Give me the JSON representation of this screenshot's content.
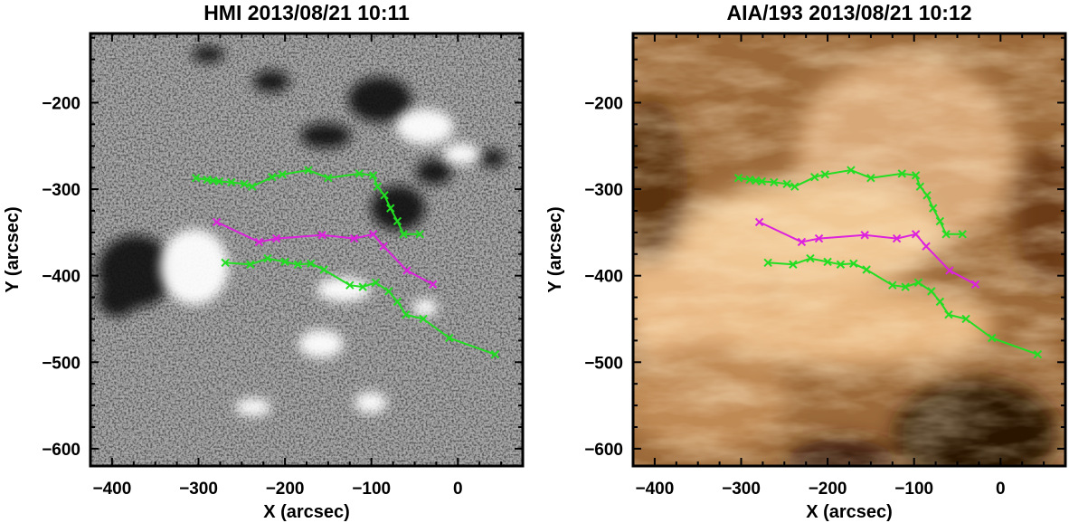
{
  "panels": [
    {
      "id": "hmi",
      "title": "HMI 2013/08/21 10:11",
      "xlabel": "X (arcsec)",
      "ylabel": "Y (arcsec)",
      "image_kind": "magnetogram (grayscale)"
    },
    {
      "id": "aia",
      "title": "AIA/193 2013/08/21 10:12",
      "xlabel": "X (arcsec)",
      "ylabel": "Y (arcsec)",
      "image_kind": "EUV 193 (copper)"
    }
  ],
  "axes": {
    "xlim": [
      -425,
      75
    ],
    "ylim": [
      -620,
      -120
    ],
    "xticks": [
      -400,
      -300,
      -200,
      -100,
      0
    ],
    "yticks": [
      -200,
      -300,
      -400,
      -500,
      -600
    ],
    "xtick_labels": [
      "−400",
      "−300",
      "−200",
      "−100",
      "0"
    ],
    "ytick_labels": [
      "−200",
      "−300",
      "−400",
      "−500",
      "−600"
    ]
  },
  "colors": {
    "green": "#22dd22",
    "magenta": "#dd22dd",
    "hmi_gray": "#888888",
    "aia_copper": "#b07030"
  },
  "chart_data": {
    "type": "line",
    "marker": "x",
    "series": [
      {
        "color": "green",
        "x": [
          -303,
          -290,
          -283,
          -276,
          -262,
          -247,
          -238,
          -215,
          -203,
          -173,
          -150,
          -114,
          -98,
          -93,
          -85,
          -78,
          -70,
          -63,
          -44
        ],
        "y": [
          -287,
          -289,
          -290,
          -291,
          -292,
          -294,
          -297,
          -286,
          -283,
          -278,
          -287,
          -282,
          -284,
          -297,
          -307,
          -322,
          -337,
          -352,
          -352
        ]
      },
      {
        "color": "magenta",
        "x": [
          -279,
          -230,
          -210,
          -157,
          -120,
          -98,
          -86,
          -59,
          -29
        ],
        "y": [
          -338,
          -361,
          -357,
          -353,
          -357,
          -352,
          -366,
          -394,
          -410
        ]
      },
      {
        "color": "green",
        "x": [
          -269,
          -240,
          -220,
          -200,
          -185,
          -170,
          -155,
          -125,
          -110,
          -95,
          -80,
          -70,
          -60,
          -40,
          -10,
          43
        ],
        "y": [
          -385,
          -387,
          -380,
          -384,
          -387,
          -386,
          -393,
          -411,
          -413,
          -408,
          -418,
          -430,
          -445,
          -450,
          -472,
          -491
        ]
      }
    ]
  }
}
